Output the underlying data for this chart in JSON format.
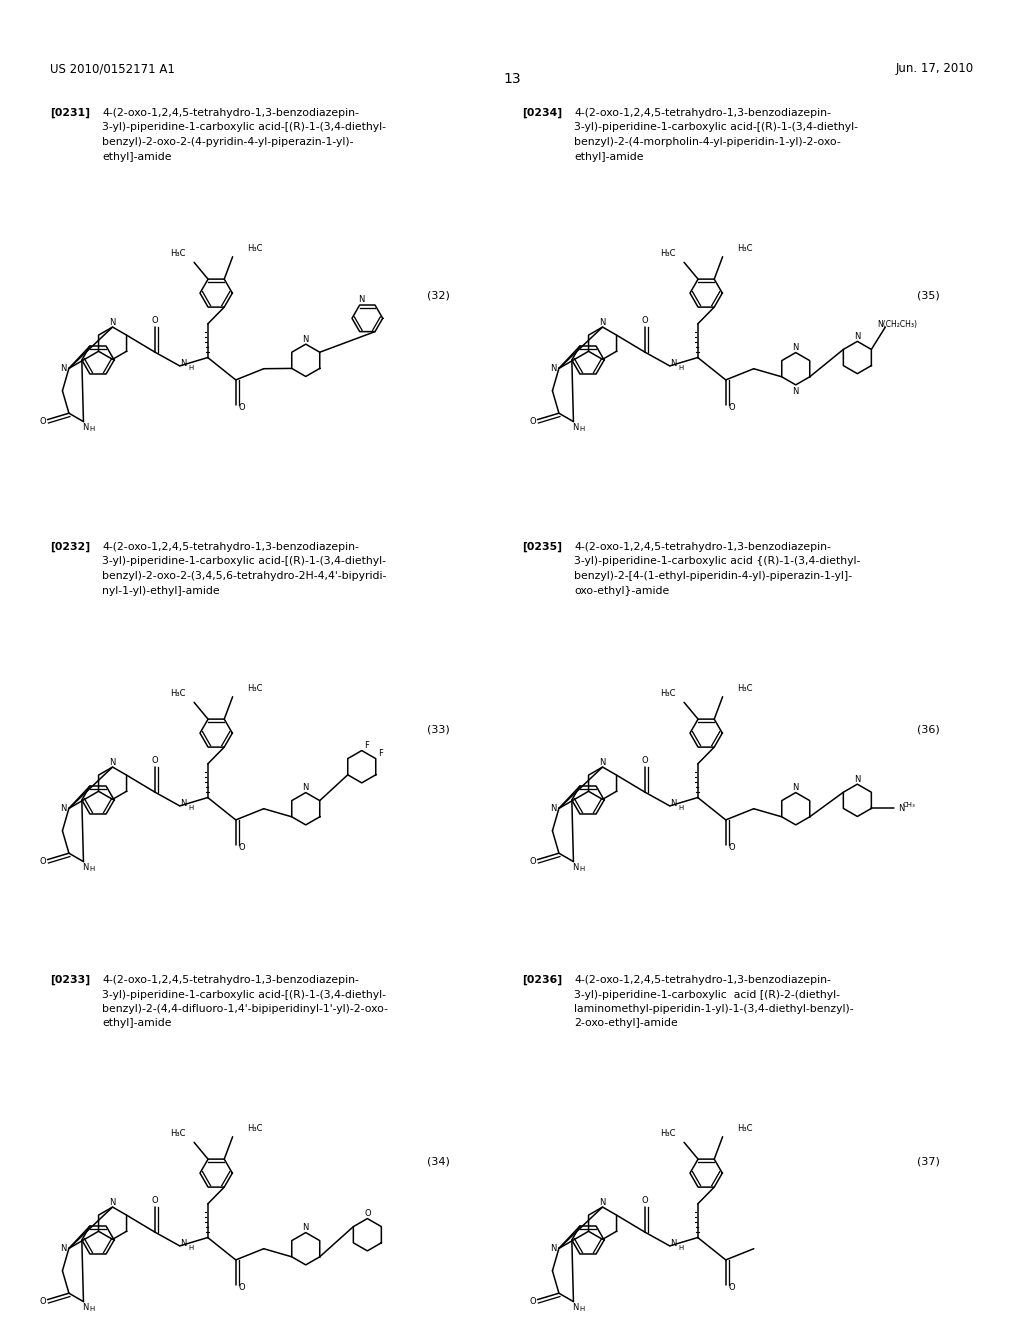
{
  "page_header_left": "US 2010/0152171 A1",
  "page_header_right": "Jun. 17, 2010",
  "page_number": "13",
  "background_color": "#ffffff",
  "text_color": "#000000",
  "font_size_header": 8.5,
  "font_size_label": 7.8,
  "font_size_number": 8.0,
  "font_size_atom": 6.5,
  "compounds": [
    {
      "ref": "[0231]",
      "number": "(32)",
      "name_lines": [
        "4-(2-oxo-1,2,4,5-tetrahydro-1,3-benzodiazepin-",
        "3-yl)-piperidine-1-carboxylic acid-[(R)-1-(3,4-diethyl-",
        "benzyl)-2-oxo-2-(4-pyridin-4-yl-piperazin-1-yl)-",
        "ethyl]-amide"
      ],
      "col": 0,
      "row": 0
    },
    {
      "ref": "[0232]",
      "number": "(33)",
      "name_lines": [
        "4-(2-oxo-1,2,4,5-tetrahydro-1,3-benzodiazepin-",
        "3-yl)-piperidine-1-carboxylic acid-[(R)-1-(3,4-diethyl-",
        "benzyl)-2-oxo-2-(3,4,5,6-tetrahydro-2H-4,4'-bipyridi-",
        "nyl-1-yl)-ethyl]-amide"
      ],
      "col": 0,
      "row": 1
    },
    {
      "ref": "[0233]",
      "number": "(34)",
      "name_lines": [
        "4-(2-oxo-1,2,4,5-tetrahydro-1,3-benzodiazepin-",
        "3-yl)-piperidine-1-carboxylic acid-[(R)-1-(3,4-diethyl-",
        "benzyl)-2-(4,4-difluoro-1,4'-bipiperidinyl-1'-yl)-2-oxo-",
        "ethyl]-amide"
      ],
      "col": 0,
      "row": 2
    },
    {
      "ref": "[0234]",
      "number": "(35)",
      "name_lines": [
        "4-(2-oxo-1,2,4,5-tetrahydro-1,3-benzodiazepin-",
        "3-yl)-piperidine-1-carboxylic acid-[(R)-1-(3,4-diethyl-",
        "benzyl)-2-(4-morpholin-4-yl-piperidin-1-yl)-2-oxo-",
        "ethyl]-amide"
      ],
      "col": 1,
      "row": 0
    },
    {
      "ref": "[0235]",
      "number": "(36)",
      "name_lines": [
        "4-(2-oxo-1,2,4,5-tetrahydro-1,3-benzodiazepin-",
        "3-yl)-piperidine-1-carboxylic acid {(R)-1-(3,4-diethyl-",
        "benzyl)-2-[4-(1-ethyl-piperidin-4-yl)-piperazin-1-yl]-",
        "oxo-ethyl}-amide"
      ],
      "col": 1,
      "row": 1
    },
    {
      "ref": "[0236]",
      "number": "(37)",
      "name_lines": [
        "4-(2-oxo-1,2,4,5-tetrahydro-1,3-benzodiazepin-",
        "3-yl)-piperidine-1-carboxylic  acid [(R)-2-(diethyl-",
        "laminomethyl-piperidin-1-yl)-1-(3,4-diethyl-benzyl)-",
        "2-oxo-ethyl]-amide"
      ],
      "col": 1,
      "row": 2
    }
  ]
}
